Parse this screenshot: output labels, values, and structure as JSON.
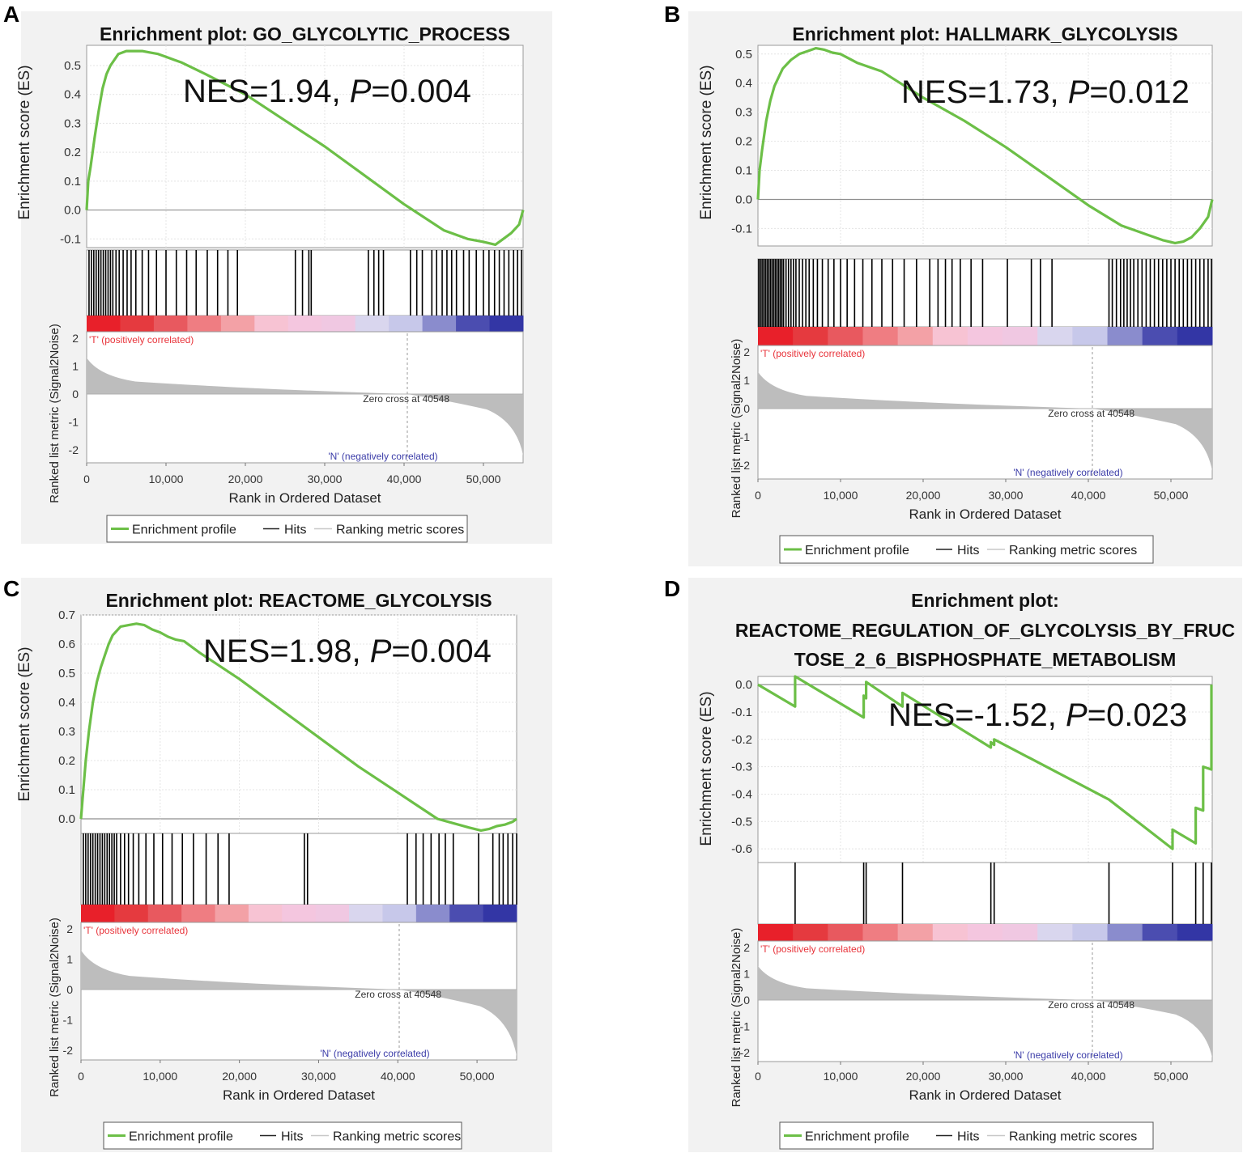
{
  "figure": {
    "panel_labels": [
      "A",
      "B",
      "C",
      "D"
    ]
  },
  "shared": {
    "ylabel_es": "Enrichment score (ES)",
    "ylabel_metric": "Ranked list metric (Signal2Noise)",
    "xlabel": "Rank in Ordered Dataset",
    "pos_label": "'T' (positively correlated)",
    "neg_label": "'N' (negatively correlated)",
    "zero_cross_label": "Zero cross at 40548",
    "legend": [
      "Enrichment profile",
      "Hits",
      "Ranking metric scores"
    ],
    "x_ticks": [
      "0",
      "10,000",
      "20,000",
      "30,000",
      "40,000",
      "50,000"
    ],
    "metric_ticks": [
      "2",
      "1",
      "0",
      "-1",
      "-2"
    ],
    "colors": {
      "profile": "#6cbf47",
      "hit": "#000000",
      "metric": "#bdbdbd",
      "pos": "#e8333a",
      "neg": "#3b3ca8",
      "frame": "#f2f2f2"
    }
  },
  "chart_data": [
    {
      "type": "line",
      "panel": "A",
      "title_lines": [
        "Enrichment plot: GO_GLYCOLYTIC_PROCESS"
      ],
      "annotation": {
        "prefix": "NES=1.94, ",
        "p": "P",
        "suffix": "=0.004"
      },
      "xlim": [
        0,
        55000
      ],
      "ylim": [
        -0.13,
        0.57
      ],
      "y_ticks": [
        "0.5",
        "0.4",
        "0.3",
        "0.2",
        "0.1",
        "0.0",
        "-0.1"
      ],
      "x": [
        0,
        200,
        500,
        1000,
        1500,
        2000,
        2500,
        3000,
        3500,
        4000,
        5000,
        6000,
        7000,
        8000,
        9000,
        10000,
        11000,
        12000,
        15000,
        20000,
        25000,
        30000,
        35000,
        40000,
        45000,
        48000,
        50000,
        51500,
        52500,
        53500,
        54500,
        55000
      ],
      "es": [
        0.0,
        0.1,
        0.15,
        0.25,
        0.34,
        0.42,
        0.47,
        0.5,
        0.52,
        0.54,
        0.55,
        0.55,
        0.55,
        0.545,
        0.54,
        0.53,
        0.52,
        0.51,
        0.47,
        0.4,
        0.31,
        0.22,
        0.12,
        0.02,
        -0.07,
        -0.1,
        -0.11,
        -0.12,
        -0.1,
        -0.08,
        -0.05,
        0.0
      ],
      "hits": [
        300,
        600,
        900,
        1200,
        1500,
        1800,
        2100,
        2400,
        2700,
        3000,
        3300,
        3700,
        4100,
        4600,
        5100,
        5600,
        6200,
        7000,
        7800,
        8800,
        10000,
        11300,
        12600,
        13800,
        15200,
        16500,
        17800,
        19000,
        26300,
        27200,
        28000,
        28300,
        35500,
        36200,
        36800,
        37400,
        40800,
        41600,
        42300,
        43500,
        44100,
        44800,
        45400,
        46000,
        46600,
        47500,
        48200,
        49100,
        50000,
        50700,
        51400,
        52000,
        52600,
        53200,
        53800,
        54300,
        54800
      ]
    },
    {
      "type": "line",
      "panel": "B",
      "title_lines": [
        "Enrichment plot: HALLMARK_GLYCOLYSIS"
      ],
      "annotation": {
        "prefix": "NES=1.73, ",
        "p": "P",
        "suffix": "=0.012"
      },
      "xlim": [
        0,
        55000
      ],
      "ylim": [
        -0.16,
        0.53
      ],
      "y_ticks": [
        "0.5",
        "0.4",
        "0.3",
        "0.2",
        "0.1",
        "0.0",
        "-0.1"
      ],
      "x": [
        0,
        200,
        500,
        1000,
        1500,
        2000,
        2500,
        3000,
        4000,
        5000,
        6000,
        7000,
        8000,
        9000,
        10000,
        12000,
        15000,
        20000,
        25000,
        30000,
        35000,
        40000,
        44000,
        47000,
        49000,
        50500,
        51500,
        52500,
        53500,
        54500,
        55000
      ],
      "es": [
        0.0,
        0.1,
        0.17,
        0.27,
        0.34,
        0.39,
        0.42,
        0.45,
        0.48,
        0.5,
        0.51,
        0.52,
        0.515,
        0.505,
        0.5,
        0.47,
        0.44,
        0.35,
        0.27,
        0.18,
        0.08,
        -0.02,
        -0.09,
        -0.12,
        -0.14,
        -0.15,
        -0.145,
        -0.13,
        -0.1,
        -0.06,
        0.0
      ],
      "hits": [
        100,
        300,
        500,
        700,
        900,
        1100,
        1300,
        1500,
        1700,
        1900,
        2100,
        2300,
        2500,
        2700,
        2900,
        3100,
        3400,
        3700,
        4000,
        4300,
        4600,
        5000,
        5400,
        5800,
        6200,
        6700,
        7200,
        7800,
        8500,
        9200,
        10000,
        10800,
        11700,
        12700,
        13800,
        15000,
        16300,
        17700,
        19200,
        20800,
        21800,
        22700,
        23500,
        24500,
        25800,
        27200,
        30200,
        33100,
        34200,
        35600,
        42500,
        42900,
        43400,
        43900,
        44300,
        44700,
        45100,
        45500,
        46000,
        46500,
        47000,
        47500,
        48000,
        48500,
        49000,
        49500,
        50000,
        50500,
        51000,
        51500,
        52000,
        52500,
        53000,
        53500,
        54000,
        54500,
        54900
      ]
    },
    {
      "type": "line",
      "panel": "C",
      "title_lines": [
        "Enrichment plot: REACTOME_GLYCOLYSIS"
      ],
      "annotation": {
        "prefix": "NES=1.98, ",
        "p": "P",
        "suffix": "=0.004"
      },
      "xlim": [
        0,
        55000
      ],
      "ylim": [
        -0.05,
        0.7
      ],
      "y_ticks": [
        "0.7",
        "0.6",
        "0.5",
        "0.4",
        "0.3",
        "0.2",
        "0.1",
        "0.0"
      ],
      "x": [
        0,
        300,
        600,
        1000,
        1500,
        2000,
        2500,
        3000,
        3500,
        4000,
        5000,
        6000,
        7000,
        8000,
        9000,
        10000,
        11000,
        12000,
        13000,
        15000,
        20000,
        25000,
        30000,
        35000,
        40000,
        45000,
        49000,
        50500,
        51500,
        52500,
        53500,
        54500,
        55000
      ],
      "es": [
        0.0,
        0.1,
        0.2,
        0.3,
        0.4,
        0.47,
        0.52,
        0.56,
        0.6,
        0.63,
        0.66,
        0.665,
        0.67,
        0.665,
        0.65,
        0.64,
        0.625,
        0.615,
        0.61,
        0.57,
        0.48,
        0.38,
        0.28,
        0.18,
        0.09,
        0.0,
        -0.03,
        -0.04,
        -0.035,
        -0.025,
        -0.02,
        -0.01,
        0.0
      ],
      "hits": [
        300,
        600,
        900,
        1200,
        1500,
        1800,
        2100,
        2400,
        2700,
        3000,
        3300,
        3600,
        3900,
        4200,
        4500,
        5000,
        5500,
        6000,
        6600,
        7300,
        8200,
        9200,
        10300,
        11500,
        12800,
        14200,
        15800,
        17300,
        18700,
        28200,
        28600,
        41200,
        42300,
        43200,
        44200,
        45200,
        46000,
        47000,
        50200,
        52000,
        52800,
        53300,
        53900,
        54500,
        55000
      ]
    },
    {
      "type": "line",
      "panel": "D",
      "title_lines": [
        "Enrichment plot:",
        "REACTOME_REGULATION_OF_GLYCOLYSIS_BY_FRUC",
        "TOSE_2_6_BISPHOSPHATE_METABOLISM"
      ],
      "annotation": {
        "prefix": "NES=-1.52, ",
        "p": "P",
        "suffix": "=0.023"
      },
      "xlim": [
        0,
        55000
      ],
      "ylim": [
        -0.65,
        0.03
      ],
      "y_ticks": [
        "0.0",
        "-0.1",
        "-0.2",
        "-0.3",
        "-0.4",
        "-0.5",
        "-0.6"
      ],
      "x": [
        0,
        4500,
        4500,
        12800,
        12800,
        13100,
        13100,
        17500,
        17500,
        28200,
        28200,
        28600,
        28600,
        42500,
        50200,
        50200,
        53000,
        53000,
        53900,
        53900,
        54900,
        54900
      ],
      "es": [
        0.0,
        -0.08,
        0.03,
        -0.12,
        -0.04,
        -0.05,
        0.01,
        -0.08,
        -0.03,
        -0.23,
        -0.21,
        -0.22,
        -0.2,
        -0.42,
        -0.6,
        -0.53,
        -0.58,
        -0.45,
        -0.46,
        -0.3,
        -0.31,
        0.0
      ],
      "hits": [
        4500,
        12800,
        13100,
        17500,
        28200,
        28600,
        42500,
        50200,
        53000,
        53900,
        54900
      ]
    }
  ]
}
